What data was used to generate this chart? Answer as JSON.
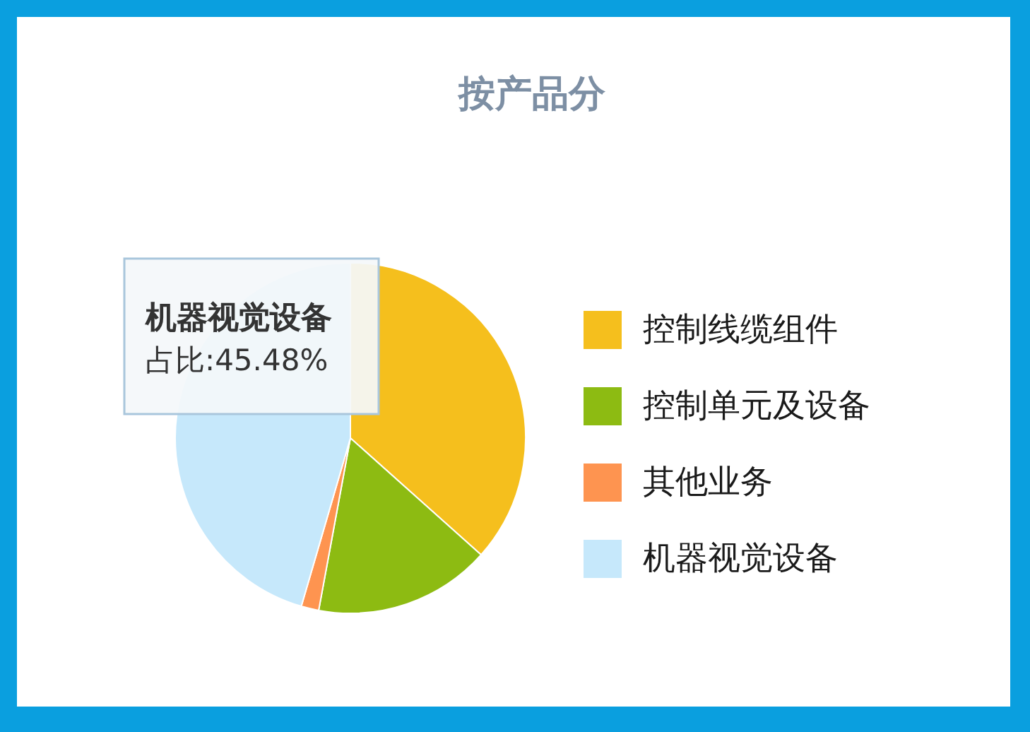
{
  "chart_data": {
    "type": "pie",
    "title": "按产品分",
    "categories": [
      "控制线缆组件",
      "控制单元及设备",
      "其他业务",
      "机器视觉设备"
    ],
    "values": [
      36.6,
      16.3,
      1.62,
      45.48
    ],
    "colors": [
      "#f5bf1d",
      "#8dbb12",
      "#fe9450",
      "#c6e8fb"
    ],
    "legend": "right",
    "annotations": [
      "机器视觉设备",
      "占比:45.48%"
    ]
  }
}
